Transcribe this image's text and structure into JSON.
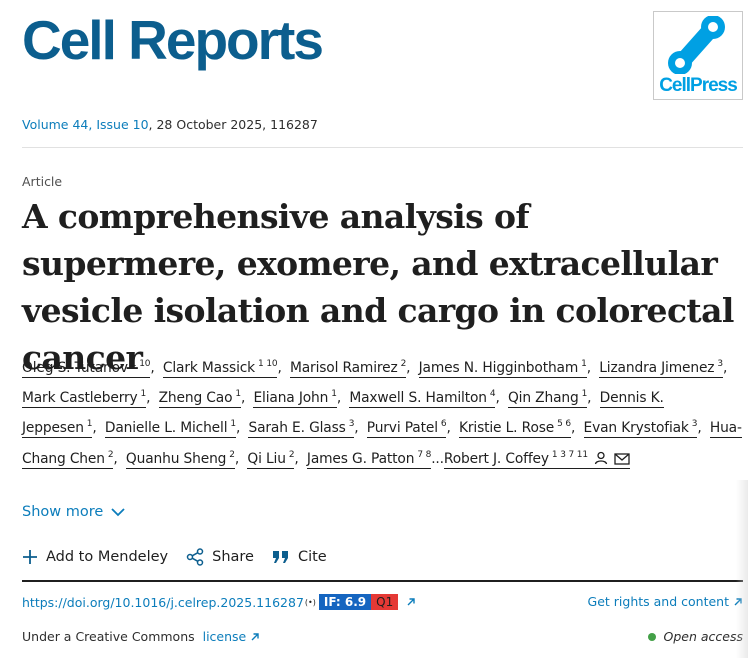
{
  "header": {
    "journal_title": "Cell Reports",
    "logo_text": "CellPress",
    "volume_link": "Volume 44, Issue 10",
    "volume_rest": ", 28 October 2025, 116287"
  },
  "article": {
    "type": "Article",
    "title": "A comprehensive analysis of supermere, exomere, and extracellular vesicle isolation and cargo in colorectal cancer"
  },
  "authors": [
    {
      "name": "Oleg S. Tutanov",
      "sup": "1 10"
    },
    {
      "name": "Clark Massick",
      "sup": "1 10"
    },
    {
      "name": "Marisol Ramirez",
      "sup": "2"
    },
    {
      "name": "James N. Higginbotham",
      "sup": "1"
    },
    {
      "name": "Lizandra Jimenez",
      "sup": "3"
    },
    {
      "name": "Mark Castleberry",
      "sup": "1"
    },
    {
      "name": "Zheng Cao",
      "sup": "1"
    },
    {
      "name": "Eliana John",
      "sup": "1"
    },
    {
      "name": "Maxwell S. Hamilton",
      "sup": "4"
    },
    {
      "name": "Qin Zhang",
      "sup": "1"
    },
    {
      "name": "Dennis K. Jeppesen",
      "sup": "1"
    },
    {
      "name": "Danielle L. Michell",
      "sup": "1"
    },
    {
      "name": "Sarah E. Glass",
      "sup": "3"
    },
    {
      "name": "Purvi Patel",
      "sup": "6"
    },
    {
      "name": "Kristie L. Rose",
      "sup": "5 6"
    },
    {
      "name": "Evan Krystofiak",
      "sup": "3"
    },
    {
      "name": "Hua-Chang Chen",
      "sup": "2"
    },
    {
      "name": "Quanhu Sheng",
      "sup": "2"
    },
    {
      "name": "Qi Liu",
      "sup": "2"
    },
    {
      "name": "James G. Patton",
      "sup": "7 8"
    },
    {
      "name": "Robert J. Coffey",
      "sup": "1 3 7 11"
    }
  ],
  "authors_ellipsis": "...",
  "show_more": "Show more",
  "actions": {
    "mendeley": "Add to Mendeley",
    "share": "Share",
    "cite": "Cite"
  },
  "doi": {
    "link": "https://doi.org/10.1016/j.celrep.2025.116287",
    "radio_symbol": "(•)",
    "impact_factor": "IF: 6.9",
    "quartile": "Q1"
  },
  "rights": {
    "link": "Get rights and content"
  },
  "license": {
    "prefix": "Under a Creative Commons ",
    "link": "license"
  },
  "access": {
    "label": "Open access"
  },
  "colors": {
    "brand": "#0c5e8e",
    "logo_blue": "#00a0e3",
    "link": "#0c7dbb",
    "if_badge": "#1565c0",
    "q_badge": "#e53935",
    "open_access_dot": "#43a047"
  }
}
